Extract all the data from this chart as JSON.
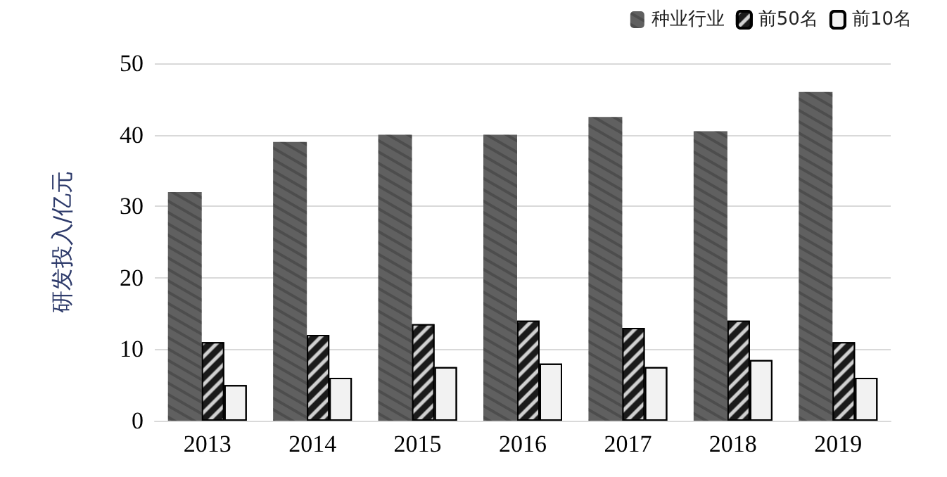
{
  "chart_data": {
    "type": "bar",
    "ylabel": "研发投入/亿元",
    "categories": [
      "2013",
      "2014",
      "2015",
      "2016",
      "2017",
      "2018",
      "2019"
    ],
    "series": [
      {
        "name": "种业行业",
        "color": "#606060",
        "values": [
          32,
          39,
          40,
          40,
          42.5,
          40.5,
          46
        ]
      },
      {
        "name": "前50名",
        "color": "#1a1a1a",
        "values": [
          11,
          12,
          13.5,
          14,
          13,
          14,
          11
        ]
      },
      {
        "name": "前10名",
        "color": "#f2f2f2",
        "values": [
          5,
          6,
          7.5,
          8,
          7.5,
          8.5,
          6
        ]
      }
    ],
    "ylim": [
      0,
      50
    ],
    "yticks": [
      0,
      10,
      20,
      30,
      40,
      50
    ],
    "grid": "y",
    "legend": "top right"
  }
}
